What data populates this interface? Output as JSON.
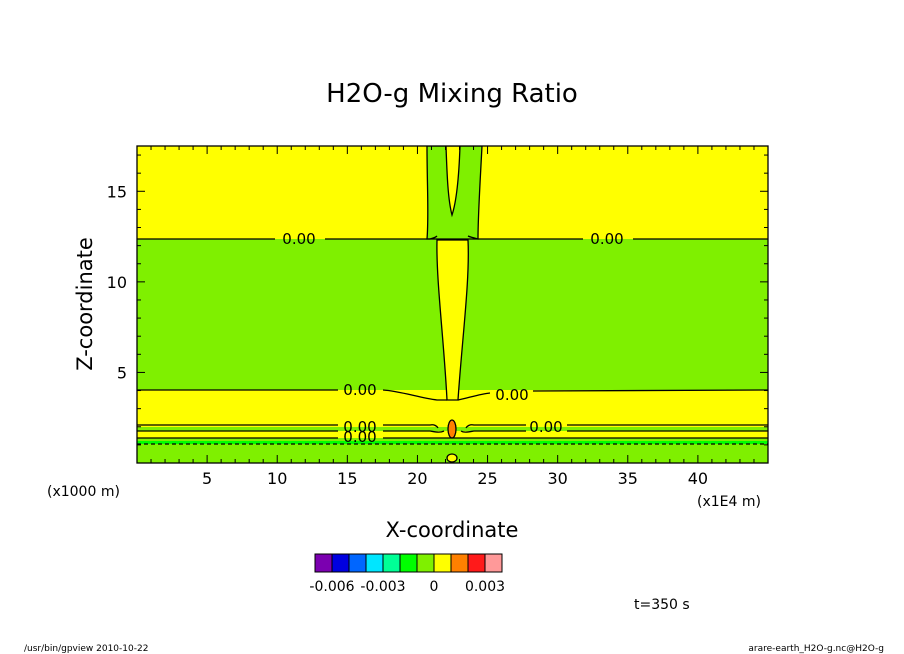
{
  "chart_data": {
    "type": "heatmap",
    "title": "H2O-g Mixing Ratio",
    "xlabel": "X-coordinate",
    "ylabel": "Z-coordinate",
    "x_unit_left": "(x1000 m)",
    "x_unit_right": "(x1E4 m)",
    "xlim": [
      0,
      45
    ],
    "ylim": [
      0,
      17.5
    ],
    "x_ticks": [
      5,
      10,
      15,
      20,
      25,
      30,
      35,
      40
    ],
    "y_ticks": [
      5,
      10,
      15
    ],
    "contour_labels": [
      {
        "text": "0.00",
        "x": 11.4,
        "y": 12.6
      },
      {
        "text": "0.00",
        "x": 33.4,
        "y": 12.6
      },
      {
        "text": "0.00",
        "x": 15.6,
        "y": 4.3
      },
      {
        "text": "0.00",
        "x": 26.8,
        "y": 3.8
      },
      {
        "text": "0.00",
        "x": 15.6,
        "y": 1.9
      },
      {
        "text": "0.00",
        "x": 28.9,
        "y": 1.9
      },
      {
        "text": "0.00",
        "x": 15.6,
        "y": 1.4
      }
    ],
    "colorbar": {
      "colors": [
        "#7b00b0",
        "#0000e0",
        "#0066ff",
        "#00e6ff",
        "#00ff96",
        "#00ff00",
        "#7ff000",
        "#ffff00",
        "#ff8000",
        "#ff1a1a",
        "#ff9999"
      ],
      "tick_labels": [
        {
          "text": "-0.006",
          "index": 1
        },
        {
          "text": "-0.003",
          "index": 4
        },
        {
          "text": "0",
          "index": 7
        },
        {
          "text": "0.003",
          "index": 10
        }
      ]
    },
    "time_label": "t=350 s"
  },
  "footer": {
    "left": "/usr/bin/gpview  2010-10-22",
    "right": "arare-earth_H2O-g.nc@H2O-g"
  }
}
